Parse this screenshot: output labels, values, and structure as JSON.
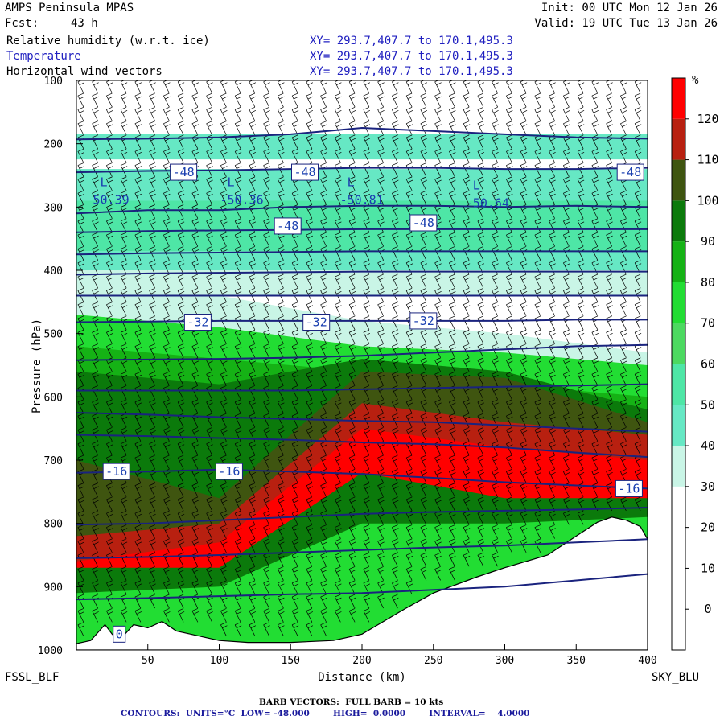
{
  "header": {
    "model": "AMPS Peninsula MPAS",
    "init": "Init: 00 UTC Mon 12 Jan 26",
    "fcst_label": "Fcst:",
    "fcst_value": "43 h",
    "valid": "Valid: 19 UTC Tue 13 Jan 26",
    "fields": [
      {
        "name": "Relative humidity (w.r.t. ice)",
        "xy": "XY= 293.7,407.7 to 170.1,495.3",
        "color": "#000000"
      },
      {
        "name": "Temperature",
        "xy": "XY= 293.7,407.7 to 170.1,495.3",
        "color": "#2020c0"
      },
      {
        "name": "Horizontal wind vectors",
        "xy": "XY= 293.7,407.7 to 170.1,495.3",
        "color": "#000000"
      }
    ]
  },
  "corners": {
    "left": "FSSL_BLF",
    "right": "SKY_BLU"
  },
  "footer": {
    "barb": "BARB VECTORS:  FULL BARB = 10 kts",
    "contours": "CONTOURS:  UNITS=°C  LOW= -48.000        HIGH=  0.0000        INTERVAL=    4.0000"
  },
  "colors": {
    "contour": "#1a237e",
    "label_text": "#1a3fb0"
  },
  "chart_data": {
    "type": "heatmap",
    "xlabel": "Distance (km)",
    "ylabel": "Pressure (hPa)",
    "xlim": [
      0,
      400
    ],
    "ylim": [
      1000,
      100
    ],
    "xticks": [
      50,
      100,
      150,
      200,
      250,
      300,
      350,
      400
    ],
    "yticks": [
      100,
      200,
      300,
      400,
      500,
      600,
      700,
      800,
      900,
      1000
    ],
    "colorbar": {
      "unit": "%",
      "ticks": [
        0,
        10,
        20,
        30,
        40,
        50,
        60,
        70,
        80,
        90,
        100,
        110,
        120
      ],
      "bins": [
        {
          "low": -10,
          "high": 0,
          "color": "#ffffff"
        },
        {
          "low": 0,
          "high": 10,
          "color": "#ffffff"
        },
        {
          "low": 10,
          "high": 20,
          "color": "#ffffff"
        },
        {
          "low": 20,
          "high": 30,
          "color": "#ffffff"
        },
        {
          "low": 30,
          "high": 40,
          "color": "#c9f5e6"
        },
        {
          "low": 40,
          "high": 50,
          "color": "#66e8c4"
        },
        {
          "low": 50,
          "high": 60,
          "color": "#4ee6a6"
        },
        {
          "low": 60,
          "high": 70,
          "color": "#4cd960"
        },
        {
          "low": 70,
          "high": 80,
          "color": "#22dd33"
        },
        {
          "low": 80,
          "high": 90,
          "color": "#15b215"
        },
        {
          "low": 90,
          "high": 100,
          "color": "#0b7a0b"
        },
        {
          "low": 100,
          "high": 110,
          "color": "#3f5510"
        },
        {
          "low": 110,
          "high": 120,
          "color": "#b82010"
        },
        {
          "low": 120,
          "high": 130,
          "color": "#ff0000"
        }
      ]
    },
    "rh_bands": [
      {
        "p_top": [
          100,
          100,
          100,
          100,
          100
        ],
        "p_bot": [
          185,
          185,
          185,
          185,
          185
        ],
        "rh": 25
      },
      {
        "p_top": [
          185,
          185,
          185,
          185,
          185
        ],
        "p_bot": [
          225,
          225,
          225,
          225,
          225
        ],
        "rh": 45
      },
      {
        "p_top": [
          225,
          225,
          225,
          225,
          225
        ],
        "p_bot": [
          240,
          240,
          240,
          240,
          240
        ],
        "rh": 25
      },
      {
        "p_top": [
          240,
          240,
          240,
          240,
          240
        ],
        "p_bot": [
          290,
          290,
          290,
          290,
          290
        ],
        "rh": 45
      },
      {
        "p_top": [
          290,
          290,
          290,
          290,
          290
        ],
        "p_bot": [
          370,
          370,
          370,
          370,
          370
        ],
        "rh": 55
      },
      {
        "p_top": [
          370,
          370,
          370,
          370,
          370
        ],
        "p_bot": [
          400,
          400,
          400,
          400,
          400
        ],
        "rh": 45
      },
      {
        "p_top": [
          400,
          400,
          400,
          400,
          400
        ],
        "p_bot": [
          440,
          440,
          440,
          440,
          440
        ],
        "rh": 35
      },
      {
        "p_top": [
          440,
          440,
          440,
          440,
          440
        ],
        "p_bot": [
          480,
          480,
          480,
          500,
          530
        ],
        "rh": 25
      },
      {
        "p_top": [
          430,
          440,
          480,
          500,
          530
        ],
        "p_bot": [
          470,
          490,
          520,
          530,
          550
        ],
        "rh": 35
      },
      {
        "p_top": [
          470,
          490,
          520,
          530,
          550
        ],
        "p_bot": [
          1000,
          1000,
          1000,
          1000,
          1000
        ],
        "rh": 75
      },
      {
        "p_top": [
          520,
          540,
          560,
          580,
          600
        ],
        "p_bot": [
          1000,
          1000,
          1000,
          1000,
          1000
        ],
        "rh": 85
      },
      {
        "p_top": [
          560,
          580,
          540,
          560,
          620
        ],
        "p_bot": [
          1000,
          1000,
          1000,
          1000,
          1000
        ],
        "rh": 95
      },
      {
        "p_top": [
          700,
          760,
          560,
          570,
          640
        ],
        "p_bot": [
          1000,
          1000,
          1000,
          1000,
          1000
        ],
        "rh": 105
      },
      {
        "p_top": [
          820,
          800,
          610,
          640,
          660
        ],
        "p_bot": [
          1000,
          1000,
          1000,
          1000,
          1000
        ],
        "rh": 115
      },
      {
        "p_top": [
          860,
          830,
          650,
          680,
          700
        ],
        "p_bot": [
          1000,
          1000,
          1000,
          1000,
          1000
        ],
        "rh": 125
      },
      {
        "p_top": [
          870,
          870,
          720,
          760,
          760
        ],
        "p_bot": [
          1000,
          1000,
          1000,
          1000,
          1000
        ],
        "rh": 95
      },
      {
        "p_top": [
          910,
          900,
          800,
          800,
          790
        ],
        "p_bot": [
          1000,
          1000,
          1000,
          1000,
          1000
        ],
        "rh": 75
      }
    ],
    "terrain": {
      "x": [
        0,
        10,
        20,
        25,
        30,
        40,
        50,
        60,
        70,
        80,
        90,
        100,
        120,
        150,
        180,
        200,
        215,
        230,
        250,
        280,
        300,
        330,
        350,
        365,
        375,
        385,
        395,
        400
      ],
      "p": [
        990,
        985,
        960,
        975,
        985,
        960,
        965,
        955,
        970,
        975,
        980,
        985,
        988,
        988,
        985,
        975,
        955,
        935,
        910,
        885,
        870,
        850,
        820,
        798,
        790,
        795,
        805,
        825
      ]
    },
    "temperature_contours": {
      "x": [
        0,
        50,
        100,
        150,
        200,
        250,
        300,
        350,
        400
      ],
      "lines": [
        {
          "p": [
            193,
            192,
            190,
            185,
            175,
            180,
            185,
            190,
            192
          ]
        },
        {
          "p": [
            245,
            243,
            242,
            240,
            238,
            238,
            240,
            240,
            238
          ]
        },
        {
          "p": [
            310,
            305,
            305,
            300,
            298,
            298,
            300,
            298,
            300
          ]
        },
        {
          "p": [
            340,
            338,
            337,
            336,
            335,
            335,
            335,
            335,
            335
          ]
        },
        {
          "p": [
            375,
            373,
            372,
            371,
            370,
            370,
            370,
            370,
            370
          ]
        },
        {
          "p": [
            407,
            405,
            404,
            403,
            402,
            402,
            402,
            402,
            402
          ]
        },
        {
          "p": [
            440,
            440,
            440,
            440,
            440,
            440,
            440,
            440,
            440
          ]
        },
        {
          "p": [
            482,
            481,
            480,
            480,
            480,
            480,
            480,
            478,
            478
          ]
        },
        {
          "p": [
            542,
            541,
            540,
            538,
            535,
            530,
            525,
            520,
            518
          ]
        },
        {
          "p": [
            590,
            590,
            590,
            590,
            588,
            586,
            584,
            582,
            580
          ]
        },
        {
          "p": [
            625,
            628,
            632,
            635,
            638,
            640,
            645,
            650,
            655
          ]
        },
        {
          "p": [
            660,
            662,
            665,
            668,
            672,
            675,
            680,
            688,
            695
          ]
        },
        {
          "p": [
            720,
            718,
            715,
            718,
            722,
            728,
            735,
            740,
            745
          ]
        },
        {
          "p": [
            802,
            800,
            795,
            790,
            785,
            782,
            780,
            778,
            775
          ]
        },
        {
          "p": [
            855,
            853,
            850,
            846,
            842,
            838,
            835,
            830,
            825
          ]
        },
        {
          "p": [
            920,
            918,
            915,
            912,
            910,
            905,
            900,
            890,
            880
          ]
        }
      ],
      "labels": [
        {
          "text": "-48",
          "x": 75,
          "p": 245
        },
        {
          "text": "-48",
          "x": 160,
          "p": 245
        },
        {
          "text": "-48",
          "x": 388,
          "p": 245
        },
        {
          "text": "-48",
          "x": 148,
          "p": 330
        },
        {
          "text": "-48",
          "x": 243,
          "p": 325
        },
        {
          "text": "-32",
          "x": 85,
          "p": 482
        },
        {
          "text": "-32",
          "x": 168,
          "p": 482
        },
        {
          "text": "-32",
          "x": 243,
          "p": 480
        },
        {
          "text": "-16",
          "x": 28,
          "p": 718
        },
        {
          "text": "-16",
          "x": 107,
          "p": 718
        },
        {
          "text": "-16",
          "x": 387,
          "p": 745
        },
        {
          "text": "0",
          "x": 30,
          "p": 975
        }
      ],
      "lows": [
        {
          "text": "50.39",
          "x": 20,
          "p": 290
        },
        {
          "text": "-50.36",
          "x": 109,
          "p": 290
        },
        {
          "text": "-50.81",
          "x": 193,
          "p": 290
        },
        {
          "text": "-50.64",
          "x": 281,
          "p": 295
        }
      ]
    }
  }
}
